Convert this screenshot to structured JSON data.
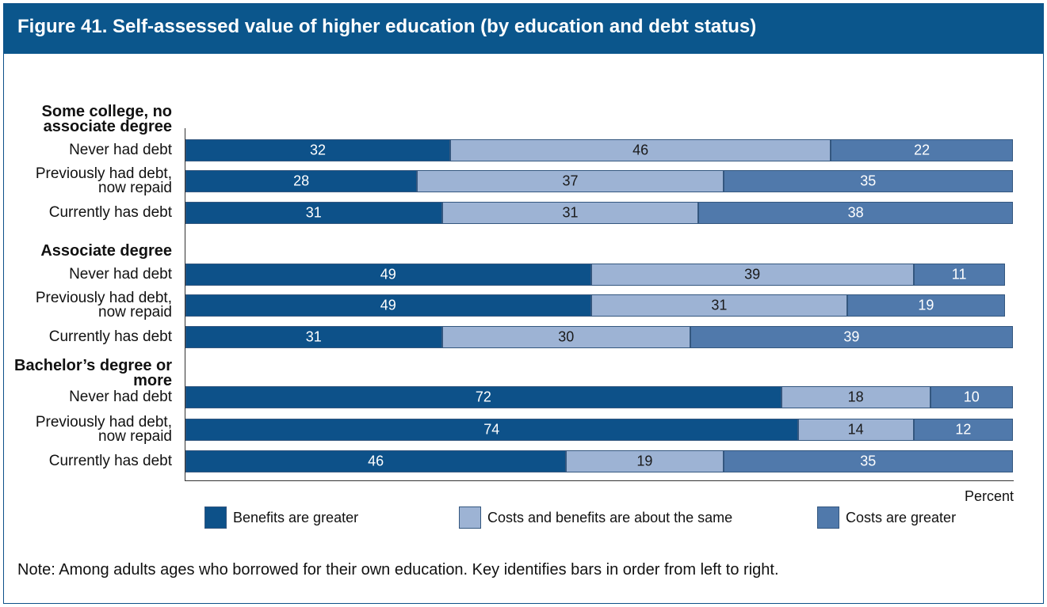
{
  "chart_data": {
    "type": "bar",
    "orientation": "horizontal",
    "stacked": true,
    "title": "Figure 41. Self-assessed value of higher education (by education and debt status)",
    "groups": [
      {
        "name": "Some college, no associate degree",
        "categories": [
          "Never had debt",
          "Previously had debt, now repaid",
          "Currently has debt"
        ]
      },
      {
        "name": "Associate degree",
        "categories": [
          "Never had debt",
          "Previously had debt, now repaid",
          "Currently has debt"
        ]
      },
      {
        "name": "Bachelor’s degree or more",
        "categories": [
          "Never had debt",
          "Previously had debt, now repaid",
          "Currently has debt"
        ]
      }
    ],
    "series": [
      {
        "name": "Benefits are greater",
        "color": "#0d5189",
        "label_color": "#ffffff",
        "values": [
          32,
          28,
          31,
          49,
          49,
          31,
          72,
          74,
          46
        ]
      },
      {
        "name": "Costs and benefits are about the same",
        "color": "#9db3d4",
        "label_color": "#1a1a1a",
        "values": [
          46,
          37,
          31,
          39,
          31,
          30,
          18,
          14,
          19
        ]
      },
      {
        "name": "Costs are greater",
        "color": "#5079ab",
        "label_color": "#ffffff",
        "values": [
          22,
          35,
          38,
          11,
          19,
          39,
          10,
          12,
          35
        ]
      }
    ],
    "xlim": [
      0,
      100
    ],
    "x_label": "Percent",
    "note": "Note: Among adults ages who borrowed for their own education. Key identifies bars in order from left to right."
  }
}
